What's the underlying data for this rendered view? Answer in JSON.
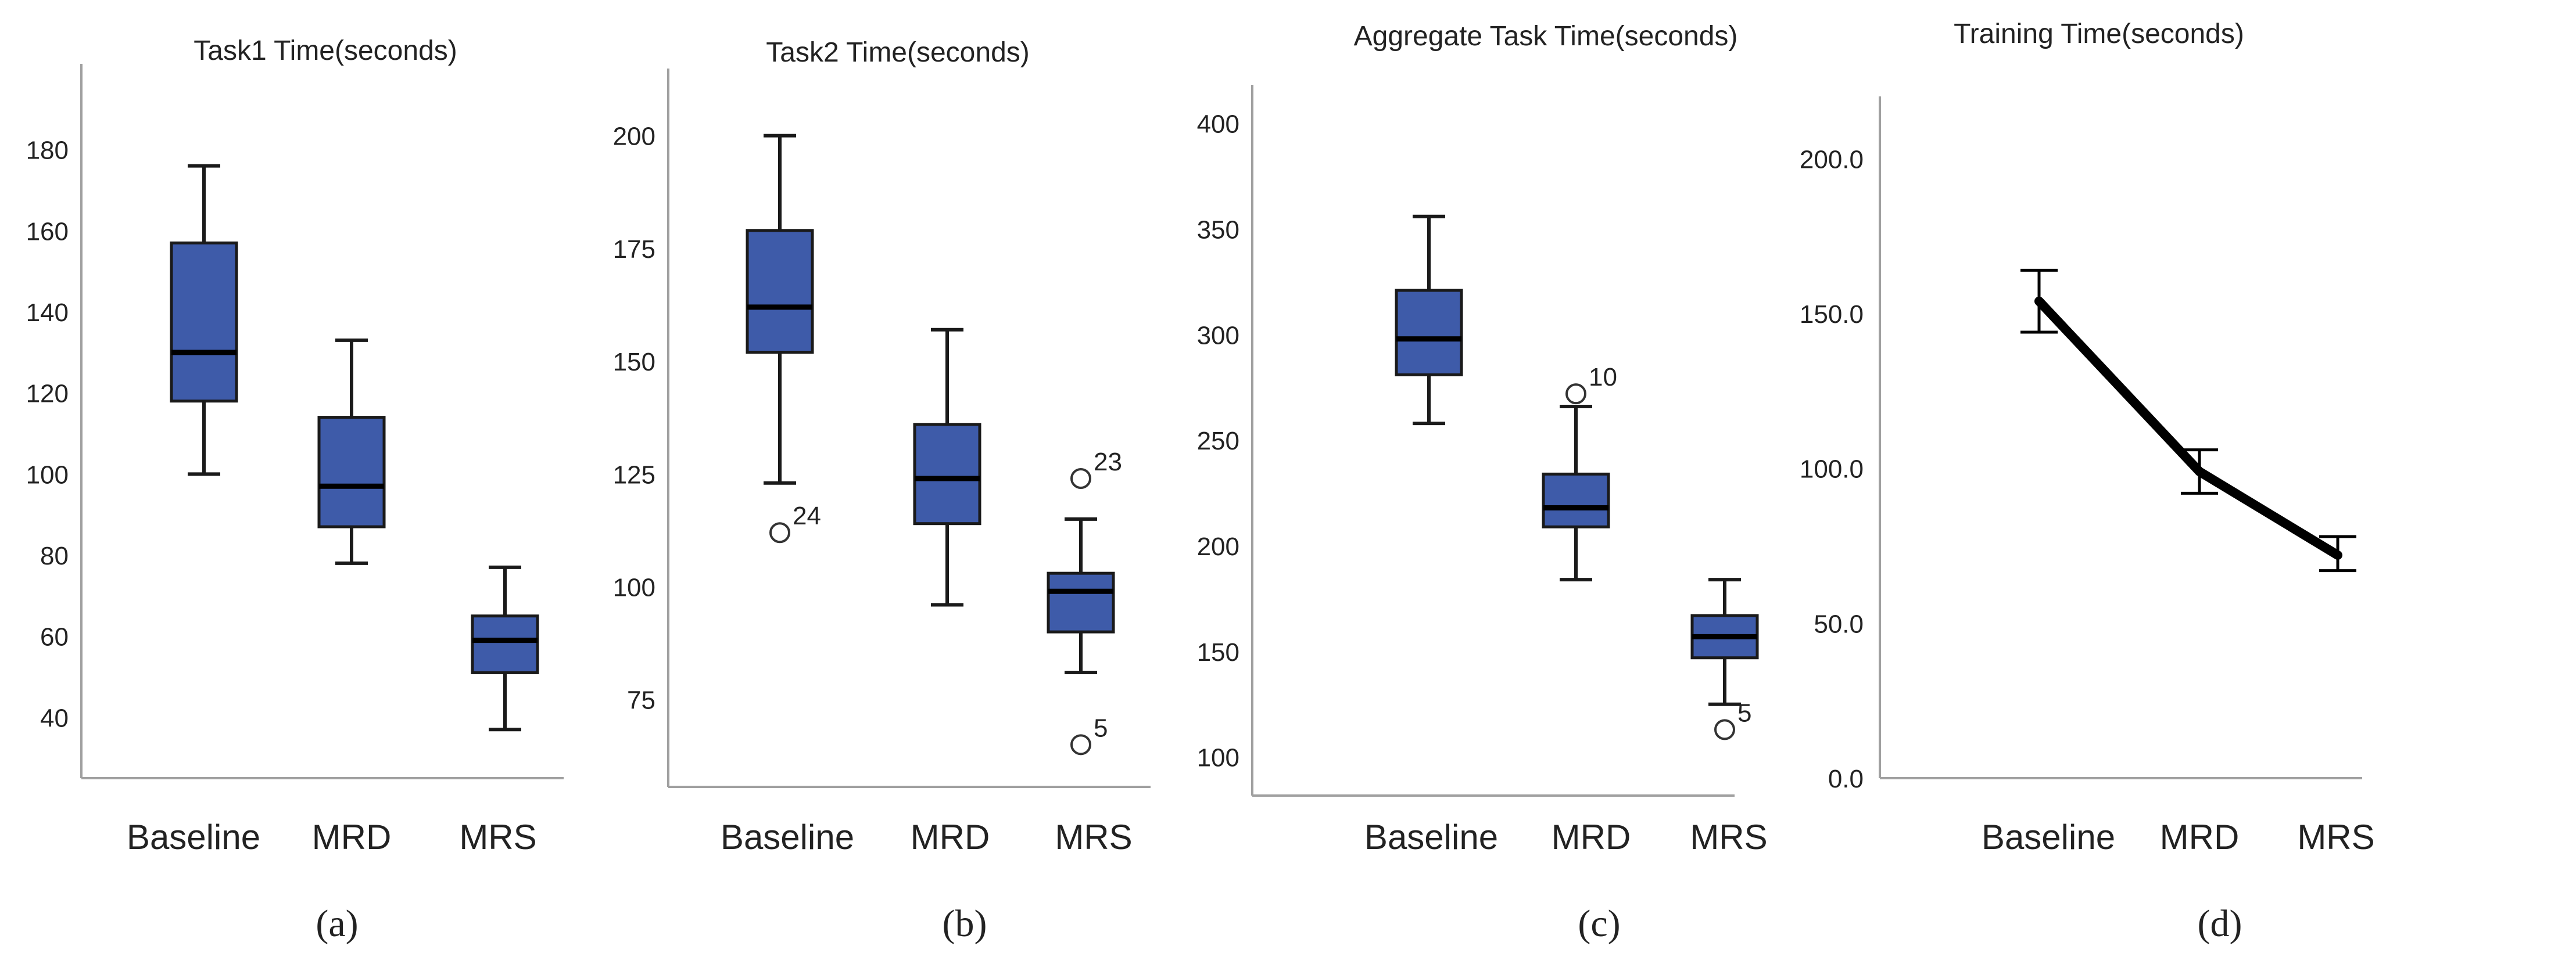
{
  "figure": {
    "panel_labels": [
      "(a)",
      "(b)",
      "(c)",
      "(d)"
    ]
  },
  "colors": {
    "box_fill": "#3E5BA9",
    "box_stroke": "#1a1a1a",
    "axis": "#a0a0a0",
    "line": "#000000"
  },
  "chart_data": [
    {
      "id": "a",
      "type": "box",
      "title": "Task1 Time(seconds)",
      "panel_label": "(a)",
      "categories": [
        "Baseline",
        "MRD",
        "MRS"
      ],
      "ylim": [
        25,
        195
      ],
      "yticks": [
        40,
        60,
        80,
        100,
        120,
        140,
        160,
        180
      ],
      "ytick_labels": [
        "40",
        "60",
        "80",
        "100",
        "120",
        "140",
        "160",
        "180"
      ],
      "boxes": [
        {
          "min": 100,
          "q1": 118,
          "median": 130,
          "q3": 157,
          "max": 176
        },
        {
          "min": 78,
          "q1": 87,
          "median": 97,
          "q3": 114,
          "max": 133
        },
        {
          "min": 37,
          "q1": 51,
          "median": 59,
          "q3": 65,
          "max": 77
        }
      ],
      "outliers": []
    },
    {
      "id": "b",
      "type": "box",
      "title": "Task2 Time(seconds)",
      "panel_label": "(b)",
      "categories": [
        "Baseline",
        "MRD",
        "MRS"
      ],
      "ylim": [
        55,
        210
      ],
      "yticks": [
        75,
        100,
        125,
        150,
        175,
        200
      ],
      "ytick_labels": [
        "75",
        "100",
        "125",
        "150",
        "175",
        "200"
      ],
      "boxes": [
        {
          "min": 123,
          "q1": 152,
          "median": 162,
          "q3": 179,
          "max": 200
        },
        {
          "min": 96,
          "q1": 114,
          "median": 124,
          "q3": 136,
          "max": 157
        },
        {
          "min": 81,
          "q1": 90,
          "median": 99,
          "q3": 103,
          "max": 115
        }
      ],
      "outliers": [
        {
          "category": "Baseline",
          "value": 112,
          "label": "24"
        },
        {
          "category": "MRS",
          "value": 124,
          "label": "23"
        },
        {
          "category": "MRS",
          "value": 65,
          "label": "5"
        }
      ]
    },
    {
      "id": "c",
      "type": "box",
      "title": "Aggregate Task Time(seconds)",
      "panel_label": "(c)",
      "categories": [
        "Baseline",
        "MRD",
        "MRS"
      ],
      "ylim": [
        90,
        420
      ],
      "yticks": [
        100,
        150,
        200,
        250,
        300,
        350,
        400
      ],
      "ytick_labels": [
        "100",
        "150",
        "200",
        "250",
        "300",
        "350",
        "400"
      ],
      "boxes": [
        {
          "min": 258,
          "q1": 281,
          "median": 298,
          "q3": 321,
          "max": 356
        },
        {
          "min": 184,
          "q1": 209,
          "median": 218,
          "q3": 234,
          "max": 266
        },
        {
          "min": 125,
          "q1": 147,
          "median": 157,
          "q3": 167,
          "max": 184
        }
      ],
      "outliers": [
        {
          "category": "MRD",
          "value": 272,
          "label": "10"
        },
        {
          "category": "MRS",
          "value": 113,
          "label": "5"
        }
      ]
    },
    {
      "id": "d",
      "type": "line",
      "title": "Training Time(seconds)",
      "panel_label": "(d)",
      "categories": [
        "Baseline",
        "MRD",
        "MRS"
      ],
      "ylim": [
        0,
        225
      ],
      "yticks": [
        0,
        50,
        100,
        150,
        200
      ],
      "ytick_labels": [
        "0.0",
        "50.0",
        "100.0",
        "150.0",
        "200.0"
      ],
      "series": [
        {
          "name": "Training Time",
          "values": [
            154,
            99,
            72
          ],
          "err_low": [
            144,
            92,
            67
          ],
          "err_high": [
            164,
            106,
            78
          ]
        }
      ]
    }
  ]
}
